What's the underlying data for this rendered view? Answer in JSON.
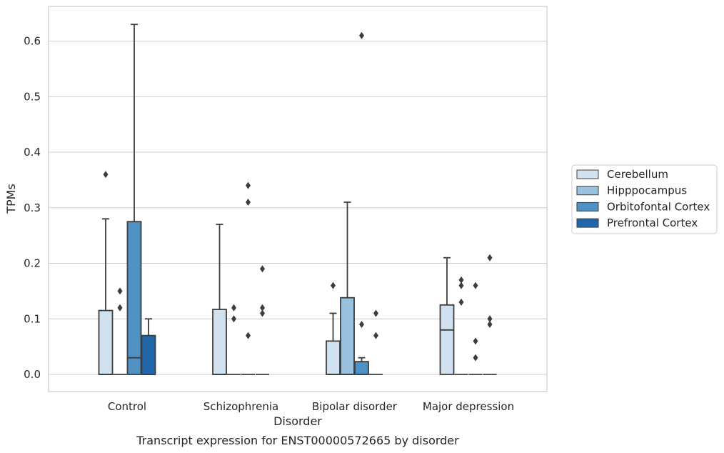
{
  "chart_data": {
    "type": "box",
    "title": "",
    "caption": "Transcript expression for ENST00000572665 by disorder",
    "xlabel": "Disorder",
    "ylabel": "TPMs",
    "ylim": [
      -0.03,
      0.665
    ],
    "yticks": [
      0.0,
      0.1,
      0.2,
      0.3,
      0.4,
      0.5,
      0.6
    ],
    "ytick_labels": [
      "0.0",
      "0.1",
      "0.2",
      "0.3",
      "0.4",
      "0.5",
      "0.6"
    ],
    "grid": "horizontal",
    "legend_position": "right",
    "categories": [
      "Control",
      "Schizophrenia",
      "Bipolar disorder",
      "Major depression"
    ],
    "series": [
      {
        "name": "Cerebellum",
        "color": "#d2e1ef",
        "boxes": [
          {
            "q1": 0.0,
            "median": 0.0,
            "q3": 0.115,
            "whisker_low": 0.0,
            "whisker_high": 0.28,
            "outliers": [
              0.36
            ]
          },
          {
            "q1": 0.0,
            "median": 0.0,
            "q3": 0.117,
            "whisker_low": 0.0,
            "whisker_high": 0.27,
            "outliers": []
          },
          {
            "q1": 0.0,
            "median": 0.0,
            "q3": 0.06,
            "whisker_low": 0.0,
            "whisker_high": 0.11,
            "outliers": [
              0.16
            ]
          },
          {
            "q1": 0.0,
            "median": 0.08,
            "q3": 0.125,
            "whisker_low": 0.0,
            "whisker_high": 0.21,
            "outliers": []
          }
        ]
      },
      {
        "name": "Hipppocampus",
        "color": "#9ac1dd",
        "boxes": [
          {
            "q1": 0.0,
            "median": 0.0,
            "q3": 0.0,
            "whisker_low": 0.0,
            "whisker_high": 0.0,
            "outliers": [
              0.12,
              0.15
            ]
          },
          {
            "q1": 0.0,
            "median": 0.0,
            "q3": 0.0,
            "whisker_low": 0.0,
            "whisker_high": 0.0,
            "outliers": [
              0.1,
              0.12
            ]
          },
          {
            "q1": 0.0,
            "median": 0.0,
            "q3": 0.138,
            "whisker_low": 0.0,
            "whisker_high": 0.31,
            "outliers": []
          },
          {
            "q1": 0.0,
            "median": 0.0,
            "q3": 0.0,
            "whisker_low": 0.0,
            "whisker_high": 0.0,
            "outliers": [
              0.13,
              0.16,
              0.17
            ]
          }
        ]
      },
      {
        "name": "Orbitofontal Cortex",
        "color": "#4f91c3",
        "boxes": [
          {
            "q1": 0.0,
            "median": 0.03,
            "q3": 0.275,
            "whisker_low": 0.0,
            "whisker_high": 0.63,
            "outliers": []
          },
          {
            "q1": 0.0,
            "median": 0.0,
            "q3": 0.0,
            "whisker_low": 0.0,
            "whisker_high": 0.0,
            "outliers": [
              0.07,
              0.31,
              0.34
            ]
          },
          {
            "q1": 0.0,
            "median": 0.0,
            "q3": 0.023,
            "whisker_low": 0.0,
            "whisker_high": 0.03,
            "outliers": [
              0.09,
              0.61
            ]
          },
          {
            "q1": 0.0,
            "median": 0.0,
            "q3": 0.0,
            "whisker_low": 0.0,
            "whisker_high": 0.0,
            "outliers": [
              0.03,
              0.06,
              0.16
            ]
          }
        ]
      },
      {
        "name": "Prefrontal Cortex",
        "color": "#2166ab",
        "boxes": [
          {
            "q1": 0.0,
            "median": 0.0,
            "q3": 0.07,
            "whisker_low": 0.0,
            "whisker_high": 0.1,
            "outliers": []
          },
          {
            "q1": 0.0,
            "median": 0.0,
            "q3": 0.0,
            "whisker_low": 0.0,
            "whisker_high": 0.0,
            "outliers": [
              0.11,
              0.12,
              0.19
            ]
          },
          {
            "q1": 0.0,
            "median": 0.0,
            "q3": 0.0,
            "whisker_low": 0.0,
            "whisker_high": 0.0,
            "outliers": [
              0.07,
              0.11
            ]
          },
          {
            "q1": 0.0,
            "median": 0.0,
            "q3": 0.0,
            "whisker_low": 0.0,
            "whisker_high": 0.0,
            "outliers": [
              0.09,
              0.1,
              0.21
            ]
          }
        ]
      }
    ]
  }
}
